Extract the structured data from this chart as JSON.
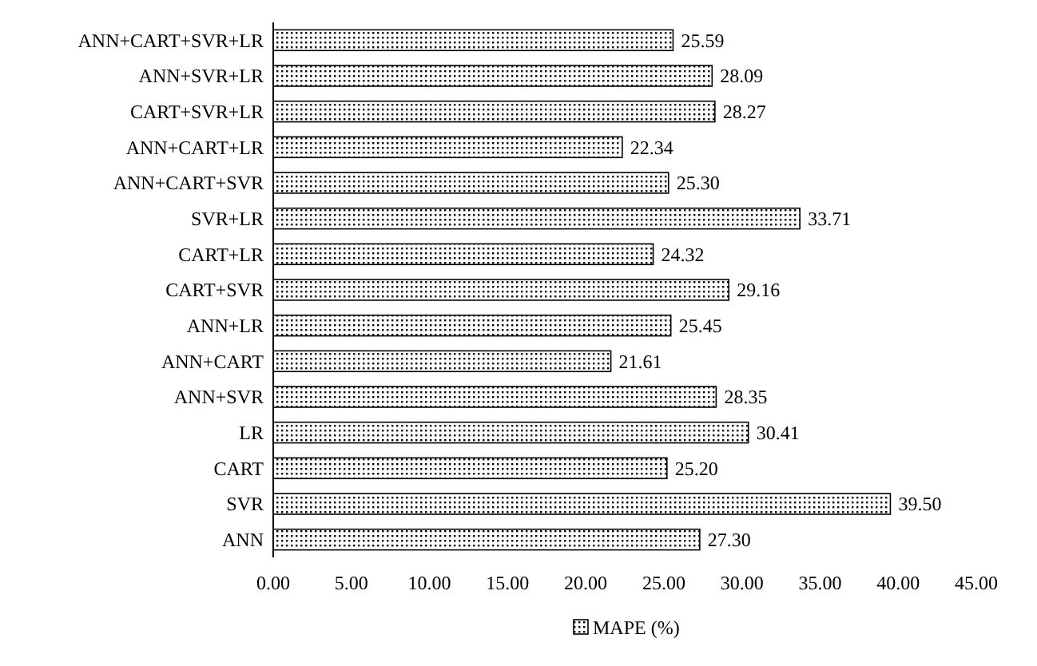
{
  "chart_data": {
    "type": "bar",
    "orientation": "horizontal",
    "categories": [
      "ANN+CART+SVR+LR",
      "ANN+SVR+LR",
      "CART+SVR+LR",
      "ANN+CART+LR",
      "ANN+CART+SVR",
      "SVR+LR",
      "CART+LR",
      "CART+SVR",
      "ANN+LR",
      "ANN+CART",
      "ANN+SVR",
      "LR",
      "CART",
      "SVR",
      "ANN"
    ],
    "series": [
      {
        "name": "MAPE (%)",
        "color": "#000000",
        "values": [
          25.59,
          28.09,
          28.27,
          22.34,
          25.3,
          33.71,
          24.32,
          29.16,
          25.45,
          21.61,
          28.35,
          30.41,
          25.2,
          39.5,
          27.3
        ],
        "value_labels": [
          "25.59",
          "28.09",
          "28.27",
          "22.34",
          "25.30",
          "33.71",
          "24.32",
          "29.16",
          "25.45",
          "21.61",
          "28.35",
          "30.41",
          "25.20",
          "39.50",
          "27.30"
        ]
      }
    ],
    "xlim": [
      0,
      45
    ],
    "xticks": [
      {
        "value": 0,
        "label": "0.00"
      },
      {
        "value": 5,
        "label": "5.00"
      },
      {
        "value": 10,
        "label": "10.00"
      },
      {
        "value": 15,
        "label": "15.00"
      },
      {
        "value": 20,
        "label": "20.00"
      },
      {
        "value": 25,
        "label": "25.00"
      },
      {
        "value": 30,
        "label": "30.00"
      },
      {
        "value": 35,
        "label": "35.00"
      },
      {
        "value": 40,
        "label": "40.00"
      },
      {
        "value": 45,
        "label": "45.00"
      }
    ],
    "grid": false,
    "legend": "bottom"
  }
}
